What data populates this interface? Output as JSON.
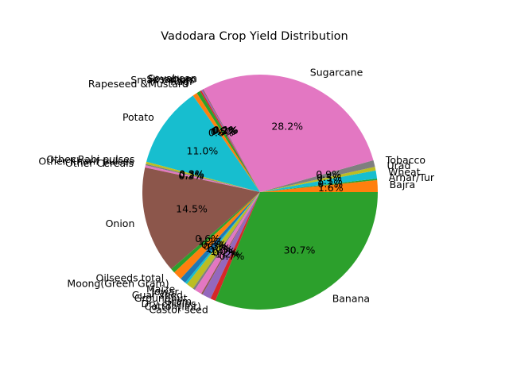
{
  "chart_data": {
    "type": "pie",
    "title": "Vadodara Crop Yield Distribution",
    "start_angle_deg": 0,
    "direction": "counterclockwise",
    "percent_format": "one-decimal",
    "slices": [
      {
        "label": "Bajra",
        "value": 1.6,
        "pct_label": "1.6%",
        "color": "#ff7f0e"
      },
      {
        "label": "Arhar/Tur",
        "value": 0.2,
        "pct_label": "0.2%",
        "color": "#2ca02c"
      },
      {
        "label": "Wheat",
        "value": 1.1,
        "pct_label": "1.1%",
        "color": "#17becf"
      },
      {
        "label": "Urad",
        "value": 0.5,
        "pct_label": "0.5%",
        "color": "#bcbd22"
      },
      {
        "label": "Tobacco",
        "value": 0.9,
        "pct_label": "0.9%",
        "color": "#7f7f7f"
      },
      {
        "label": "Sugarcane",
        "value": 28.2,
        "pct_label": "28.2%",
        "color": "#e377c2"
      },
      {
        "label": "Soyabean",
        "value": 0.1,
        "pct_label": "0.1%",
        "color": "#8c564b"
      },
      {
        "label": "Sesamum",
        "value": 0.2,
        "pct_label": "0.2%",
        "color": "#9467bd"
      },
      {
        "label": "Small millets",
        "value": 0.2,
        "pct_label": "0.2%",
        "color": "#d62728"
      },
      {
        "label": "Ragi",
        "value": 0.5,
        "pct_label": "0.5%",
        "color": "#2ca02c"
      },
      {
        "label": "Rapeseed &Mustard",
        "value": 0.6,
        "pct_label": "0.6%",
        "color": "#ff7f0e"
      },
      {
        "label": "Potato",
        "value": 11.0,
        "pct_label": "11.0%",
        "color": "#17becf"
      },
      {
        "label": "Other Rabi pulses",
        "value": 0.3,
        "pct_label": "0.3%",
        "color": "#bcbd22"
      },
      {
        "label": "Other Kharif pulses",
        "value": 0.2,
        "pct_label": "0.2%",
        "color": "#7f7f7f"
      },
      {
        "label": "Other Cereals",
        "value": 0.3,
        "pct_label": "0.3%",
        "color": "#e377c2"
      },
      {
        "label": "Onion",
        "value": 14.5,
        "pct_label": "14.5%",
        "color": "#8c564b"
      },
      {
        "label": "Oilseeds total",
        "value": 0.6,
        "pct_label": "0.6%",
        "color": "#2ca02c"
      },
      {
        "label": "Moong(Green Gram)",
        "value": 1.2,
        "pct_label": "1.2%",
        "color": "#ff7f0e"
      },
      {
        "label": "Maize",
        "value": 0.8,
        "pct_label": "0.8%",
        "color": "#1f77b4"
      },
      {
        "label": "Jowar",
        "value": 0.3,
        "pct_label": "0.3%",
        "color": "#17becf"
      },
      {
        "label": "Guar seed",
        "value": 1.0,
        "pct_label": "1.0%",
        "color": "#bcbd22"
      },
      {
        "label": "Groundnut",
        "value": 0.3,
        "pct_label": "0.3%",
        "color": "#7f7f7f"
      },
      {
        "label": "Gram",
        "value": 1.0,
        "pct_label": "1.0%",
        "color": "#e377c2"
      },
      {
        "label": "Dry chillies",
        "value": 0.2,
        "pct_label": "0.2%",
        "color": "#8c564b"
      },
      {
        "label": "Cotton(lint)",
        "value": 1.2,
        "pct_label": "1.2%",
        "color": "#9467bd"
      },
      {
        "label": "Castor seed",
        "value": 0.7,
        "pct_label": "0.7%",
        "color": "#d62728"
      },
      {
        "label": "Banana",
        "value": 30.7,
        "pct_label": "30.7%",
        "color": "#2ca02c"
      }
    ]
  }
}
